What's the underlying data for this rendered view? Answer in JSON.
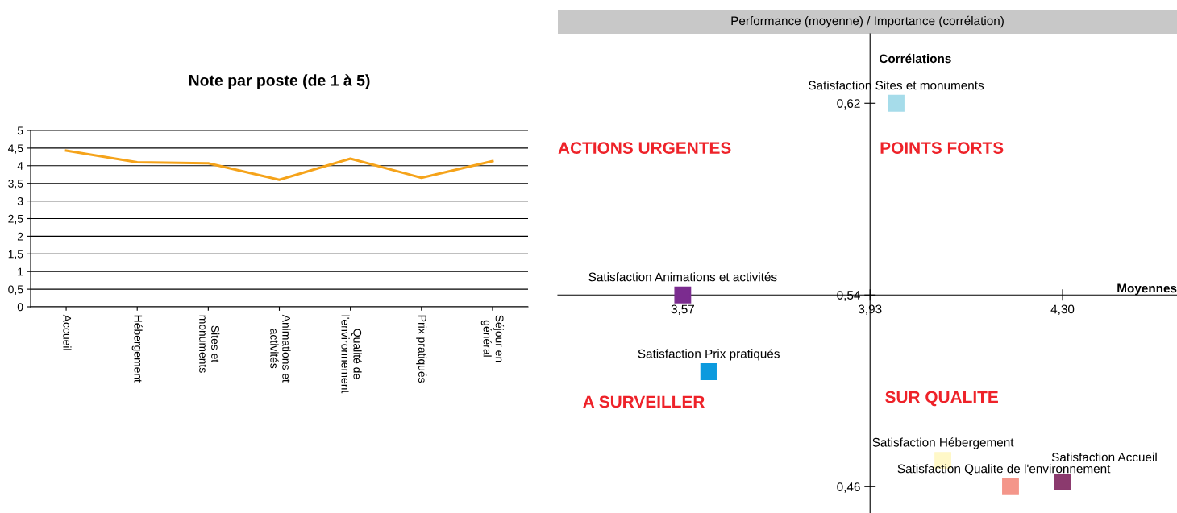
{
  "chart_data": [
    {
      "type": "line",
      "title": "Note par poste (de 1 à 5)",
      "categories": [
        "Accueil",
        "Hébergement",
        "Sites et\nmonuments",
        "Animations et\nactivités",
        "Qualité de\nl'environnement",
        "Prix pratiqués",
        "Séjour en\ngénéral"
      ],
      "series": [
        {
          "color": "#f5a31a",
          "values": [
            4.43,
            4.1,
            4.07,
            3.6,
            4.2,
            3.66,
            4.13
          ]
        }
      ],
      "ylim": [
        0,
        5
      ],
      "yticks": [
        0,
        {
          "value": 0.5,
          "label": "0,5"
        },
        1,
        {
          "value": 1.5,
          "label": "1,5"
        },
        2,
        {
          "value": 2.5,
          "label": "2,5"
        },
        3,
        {
          "value": 3.5,
          "label": "3,5"
        },
        4,
        {
          "value": 4.5,
          "label": "4,5"
        },
        5
      ],
      "grid": "y",
      "legend": false,
      "marker": "none",
      "line_style": "solid"
    },
    {
      "type": "scatter",
      "title": "Performance (moyenne) / Importance (corrélation)",
      "xlabel": "Moyennes",
      "ylabel": "Corrélations",
      "series": [
        {
          "name": "Satisfaction Sites et monuments",
          "color": "#a6dcea",
          "x": [
            3.98
          ],
          "values": [
            0.62
          ]
        },
        {
          "name": "Satisfaction Animations et activités",
          "color": "#7b2c8f",
          "x": [
            3.57
          ],
          "values": [
            0.54
          ]
        },
        {
          "name": "Satisfaction Prix pratiqués",
          "color": "#0b9ade",
          "x": [
            3.62
          ],
          "values": [
            0.508
          ]
        },
        {
          "name": "Satisfaction Hébergement",
          "color": "#fff8c8",
          "x": [
            4.07
          ],
          "values": [
            0.471
          ]
        },
        {
          "name": "Satisfaction Qualite de l'environnement",
          "color": "#f4968a",
          "x": [
            4.2
          ],
          "values": [
            0.46
          ]
        },
        {
          "name": "Satisfaction Accueil",
          "color": "#8b3a6e",
          "x": [
            4.3
          ],
          "values": [
            0.462
          ]
        }
      ],
      "annotations": [
        "ACTIONS URGENTES",
        "POINTS FORTS",
        "A SURVEILLER",
        "SUR QUALITE"
      ],
      "xlim": [
        3.33,
        4.52
      ],
      "ylim": [
        0.449,
        0.649
      ],
      "xticks": [
        {
          "value": 3.57,
          "label": "3,57"
        },
        {
          "value": 3.93,
          "label": "3,93"
        },
        {
          "value": 4.3,
          "label": "4,30"
        }
      ],
      "yticks": [
        {
          "value": 0.46,
          "label": "0,46"
        },
        {
          "value": 0.54,
          "label": "0,54"
        },
        {
          "value": 0.62,
          "label": "0,62"
        }
      ],
      "grid": false,
      "marker": "square"
    }
  ]
}
